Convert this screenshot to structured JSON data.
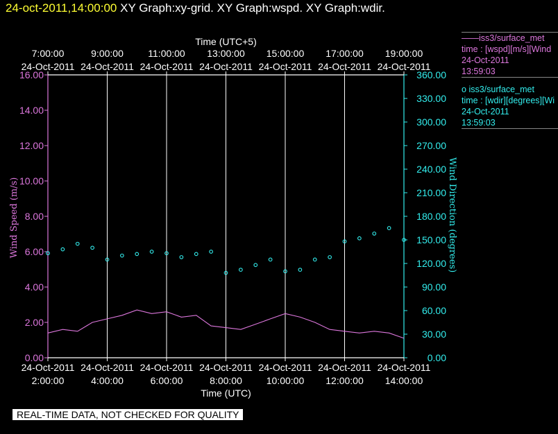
{
  "header": {
    "datetime": "24-oct-2011,14:00:00",
    "titles": "XY Graph:xy-grid.  XY Graph:wspd.  XY Graph:wdir."
  },
  "legend": {
    "series1": {
      "name": "iss3/surface_met",
      "line1": "time : [wspd][m/s][Wind",
      "date": "24-Oct-2011",
      "time": "13:59:03"
    },
    "series2": {
      "name": "iss3/surface_met",
      "line1": "time : [wdir][degrees][Wi",
      "date": "24-Oct-2011",
      "time": "13:59:03"
    }
  },
  "footer": "REAL-TIME DATA, NOT CHECKED FOR QUALITY",
  "colors": {
    "wspd": "#dd77dd",
    "wdir": "#33eeee",
    "grid": "#ffffff",
    "background": "#000000"
  },
  "chart_data": {
    "type": "line",
    "top_axis": {
      "label": "Time (UTC+5)",
      "ticks": [
        {
          "time": "7:00:00",
          "date": "24-Oct-2011"
        },
        {
          "time": "9:00:00",
          "date": "24-Oct-2011"
        },
        {
          "time": "11:00:00",
          "date": "24-Oct-2011"
        },
        {
          "time": "13:00:00",
          "date": "24-Oct-2011"
        },
        {
          "time": "15:00:00",
          "date": "24-Oct-2011"
        },
        {
          "time": "17:00:00",
          "date": "24-Oct-2011"
        },
        {
          "time": "19:00:00",
          "date": "24-Oct-2011"
        }
      ]
    },
    "x_axis": {
      "label": "Time (UTC)",
      "range": [
        "2011-10-24T02:00:00Z",
        "2011-10-24T14:00:00Z"
      ],
      "ticks": [
        {
          "time": "2:00:00",
          "date": "24-Oct-2011"
        },
        {
          "time": "4:00:00",
          "date": "24-Oct-2011"
        },
        {
          "time": "6:00:00",
          "date": "24-Oct-2011"
        },
        {
          "time": "8:00:00",
          "date": "24-Oct-2011"
        },
        {
          "time": "10:00:00",
          "date": "24-Oct-2011"
        },
        {
          "time": "12:00:00",
          "date": "24-Oct-2011"
        },
        {
          "time": "14:00:00",
          "date": "24-Oct-2011"
        }
      ]
    },
    "y_left": {
      "label": "Wind Speed (m/s)",
      "range": [
        0,
        16
      ],
      "ticks": [
        "0.00",
        "2.00",
        "4.00",
        "6.00",
        "8.00",
        "10.00",
        "12.00",
        "14.00",
        "16.00"
      ]
    },
    "y_right": {
      "label": "Wind Direction (degrees)",
      "range": [
        0,
        360
      ],
      "ticks": [
        "0.00",
        "30.00",
        "60.00",
        "90.00",
        "120.00",
        "150.00",
        "180.00",
        "210.00",
        "240.00",
        "270.00",
        "300.00",
        "330.00",
        "360.00"
      ]
    },
    "grid": "vertical",
    "series": [
      {
        "name": "iss3/surface_met",
        "variable": "wspd",
        "style": "line",
        "color": "#dd77dd",
        "x": [
          "02:00",
          "02:30",
          "03:00",
          "03:30",
          "04:00",
          "04:30",
          "05:00",
          "05:30",
          "06:00",
          "06:30",
          "07:00",
          "07:30",
          "08:00",
          "08:30",
          "09:00",
          "09:30",
          "10:00",
          "10:30",
          "11:00",
          "11:30",
          "12:00",
          "12:30",
          "13:00",
          "13:30",
          "14:00"
        ],
        "values": [
          1.4,
          1.6,
          1.5,
          2.0,
          2.2,
          2.4,
          2.7,
          2.5,
          2.6,
          2.3,
          2.4,
          1.8,
          1.7,
          1.6,
          1.9,
          2.2,
          2.5,
          2.3,
          2.0,
          1.6,
          1.5,
          1.4,
          1.5,
          1.4,
          1.1
        ]
      },
      {
        "name": "iss3/surface_met",
        "variable": "wdir",
        "style": "points",
        "color": "#33eeee",
        "x": [
          "02:00",
          "02:30",
          "03:00",
          "03:30",
          "04:00",
          "04:30",
          "05:00",
          "05:30",
          "06:00",
          "06:30",
          "07:00",
          "07:30",
          "08:00",
          "08:30",
          "09:00",
          "09:30",
          "10:00",
          "10:30",
          "11:00",
          "11:30",
          "12:00",
          "12:30",
          "13:00",
          "13:30",
          "14:00"
        ],
        "values": [
          133,
          138,
          145,
          140,
          125,
          130,
          132,
          135,
          133,
          128,
          132,
          135,
          108,
          112,
          118,
          125,
          110,
          112,
          125,
          128,
          148,
          152,
          158,
          165,
          150
        ]
      }
    ]
  }
}
